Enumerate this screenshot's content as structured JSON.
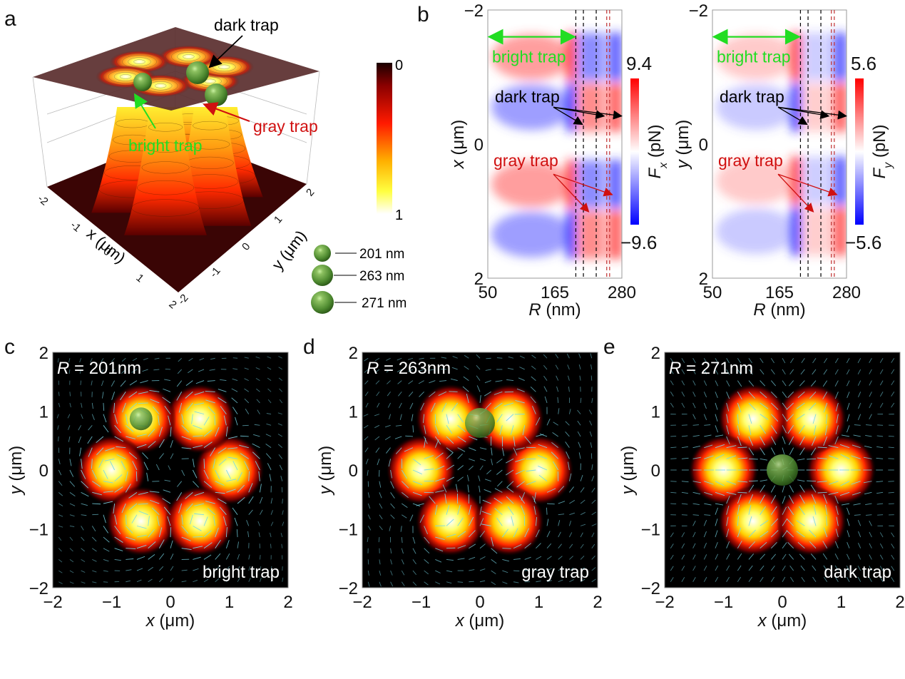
{
  "panels": {
    "a": "a",
    "b": "b",
    "c": "c",
    "d": "d",
    "e": "e"
  },
  "chart_data": [
    {
      "id": "a",
      "type": "heatmap",
      "title": "",
      "description": "3D surface of normalized intensity with projected six-lobe pattern; particles trapped at bright, gray and dark traps",
      "xlabel": "x (μm)",
      "ylabel": "y (μm)",
      "xlim": [
        -2,
        2
      ],
      "ylim": [
        -2,
        2
      ],
      "x_ticks": [
        "-2",
        "-1",
        "0",
        "1",
        "2"
      ],
      "y_ticks": [
        "-2",
        "-1",
        "0",
        "1",
        "2"
      ],
      "colorbar": {
        "min_label": "0",
        "max_label": "1",
        "colormap": [
          "#ffffff",
          "#ffff00",
          "#ff8000",
          "#ff0000",
          "#8b0000",
          "#1a0000"
        ]
      },
      "lobes": [
        {
          "x": 1.0,
          "y": 0.0
        },
        {
          "x": 0.5,
          "y": 0.87
        },
        {
          "x": -0.5,
          "y": 0.87
        },
        {
          "x": -1.0,
          "y": 0.0
        },
        {
          "x": -0.5,
          "y": -0.87
        },
        {
          "x": 0.5,
          "y": -0.87
        }
      ],
      "annotations": [
        {
          "text": "dark trap",
          "color": "#000000"
        },
        {
          "text": "gray trap",
          "color": "#d01010"
        },
        {
          "text": "bright trap",
          "color": "#22dd22"
        }
      ],
      "legend": [
        {
          "label": "201 nm"
        },
        {
          "label": "263 nm"
        },
        {
          "label": "271 nm"
        }
      ]
    },
    {
      "id": "b-left",
      "type": "heatmap",
      "xlabel": "R (nm)",
      "ylabel": "x (μm)",
      "xlim": [
        50,
        280
      ],
      "ylim": [
        -2,
        2
      ],
      "x_ticks": [
        "50",
        "165",
        "280"
      ],
      "y_ticks": [
        "−2",
        "0",
        "2"
      ],
      "colorbar": {
        "label": "Fx (pN)",
        "label_main": "F",
        "label_sub": "x",
        "label_unit": " (pN)",
        "max": 9.4,
        "min": -9.6,
        "max_label": "9.4",
        "min_label": "−9.6"
      },
      "dashed_lines_R": [
        201,
        214,
        236,
        254,
        259
      ],
      "bright_trap_range": [
        50,
        201
      ],
      "annotations": [
        {
          "text": "bright trap",
          "color": "#22dd22"
        },
        {
          "text": "dark trap",
          "color": "#000000"
        },
        {
          "text": "gray trap",
          "color": "#d01010"
        }
      ]
    },
    {
      "id": "b-right",
      "type": "heatmap",
      "xlabel": "R (nm)",
      "ylabel": "y (μm)",
      "xlim": [
        50,
        280
      ],
      "ylim": [
        -2,
        2
      ],
      "x_ticks": [
        "50",
        "165",
        "280"
      ],
      "y_ticks": [
        "−2",
        "0",
        "2"
      ],
      "colorbar": {
        "label": "Fy (pN)",
        "label_main": "F",
        "label_sub": "y",
        "label_unit": " (pN)",
        "max": 5.6,
        "min": -5.6,
        "max_label": "5.6",
        "min_label": "−5.6"
      },
      "dashed_lines_R": [
        201,
        214,
        236,
        254,
        259
      ],
      "bright_trap_range": [
        50,
        201
      ],
      "annotations": [
        {
          "text": "bright trap",
          "color": "#22dd22"
        },
        {
          "text": "dark trap",
          "color": "#000000"
        },
        {
          "text": "gray trap",
          "color": "#d01010"
        }
      ]
    },
    {
      "id": "c",
      "type": "heatmap",
      "xlabel": "x (μm)",
      "ylabel": "y (μm)",
      "xlim": [
        -2,
        2
      ],
      "ylim": [
        -2,
        2
      ],
      "x_ticks": [
        "−2",
        "−1",
        "0",
        "1",
        "2"
      ],
      "y_ticks": [
        "−2",
        "−1",
        "0",
        "1",
        "2"
      ],
      "radius_label": "R = 201nm",
      "radius_var": "R",
      "radius_value": " = 201nm",
      "trap_label": "bright trap",
      "particle": {
        "x": -0.5,
        "y": 0.87
      },
      "field": "vortex"
    },
    {
      "id": "d",
      "type": "heatmap",
      "xlabel": "x (μm)",
      "ylabel": "y (μm)",
      "xlim": [
        -2,
        2
      ],
      "ylim": [
        -2,
        2
      ],
      "x_ticks": [
        "−2",
        "−1",
        "0",
        "1",
        "2"
      ],
      "y_ticks": [
        "−2",
        "−1",
        "0",
        "1",
        "2"
      ],
      "radius_label": "R = 263nm",
      "radius_var": "R",
      "radius_value": " = 263nm",
      "trap_label": "gray trap",
      "particle": {
        "x": 0.0,
        "y": 0.8
      },
      "field": "mixed"
    },
    {
      "id": "e",
      "type": "heatmap",
      "xlabel": "x (μm)",
      "ylabel": "y (μm)",
      "xlim": [
        -2,
        2
      ],
      "ylim": [
        -2,
        2
      ],
      "x_ticks": [
        "−2",
        "−1",
        "0",
        "1",
        "2"
      ],
      "y_ticks": [
        "−2",
        "−1",
        "0",
        "1",
        "2"
      ],
      "radius_label": "R = 271nm",
      "radius_var": "R",
      "radius_value": " = 271nm",
      "trap_label": "dark trap",
      "particle": {
        "x": 0.0,
        "y": 0.0
      },
      "field": "radial"
    }
  ]
}
